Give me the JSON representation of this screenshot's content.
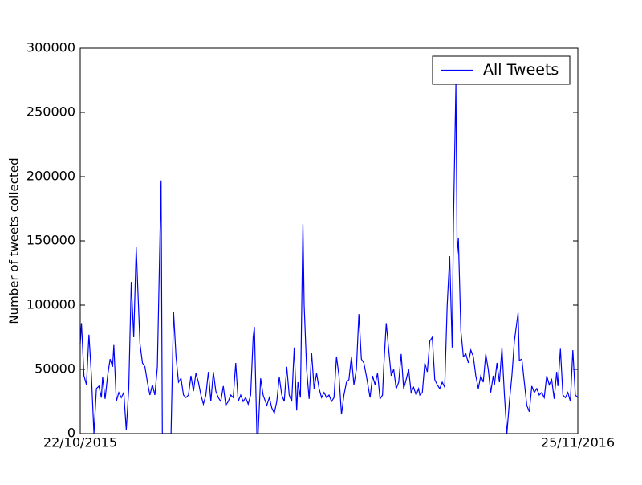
{
  "chart_data": {
    "type": "line",
    "y_label": "Number of tweets collected",
    "x": [
      0,
      1,
      3,
      5,
      7,
      9,
      11,
      13,
      15,
      17,
      18,
      20,
      22,
      24,
      26,
      27,
      29,
      31,
      33,
      35,
      37,
      39,
      41,
      43,
      45,
      46,
      48,
      50,
      52,
      54,
      56,
      58,
      60,
      62,
      65,
      66,
      73,
      75,
      77,
      79,
      81,
      83,
      85,
      87,
      89,
      91,
      93,
      95,
      97,
      99,
      101,
      103,
      105,
      107,
      109,
      111,
      113,
      115,
      117,
      119,
      121,
      123,
      125,
      127,
      129,
      131,
      133,
      135,
      137,
      139,
      140,
      142,
      143,
      145,
      147,
      150,
      152,
      154,
      156,
      158,
      160,
      162,
      164,
      166,
      168,
      170,
      172,
      174,
      175,
      177,
      179,
      180,
      182,
      184,
      186,
      188,
      190,
      192,
      194,
      196,
      198,
      200,
      202,
      204,
      206,
      208,
      210,
      212,
      214,
      216,
      218,
      220,
      222,
      224,
      226,
      228,
      230,
      233,
      235,
      237,
      239,
      241,
      243,
      244,
      246,
      248,
      250,
      252,
      254,
      256,
      258,
      260,
      262,
      264,
      266,
      268,
      270,
      272,
      273,
      275,
      277,
      279,
      281,
      283,
      285,
      287,
      289,
      291,
      293,
      295,
      297,
      299,
      300,
      302,
      303,
      304,
      306,
      308,
      310,
      312,
      314,
      316,
      318,
      320,
      322,
      324,
      326,
      328,
      330,
      332,
      333,
      335,
      337,
      339,
      341,
      343,
      345,
      347,
      349,
      352,
      353,
      355,
      357,
      359,
      361,
      363,
      365,
      367,
      369,
      371,
      373,
      375,
      377,
      379,
      381,
      383,
      384,
      386,
      388,
      390,
      392,
      394,
      396,
      398,
      400
    ],
    "series": [
      {
        "name": "All Tweets",
        "color": "#0000ff",
        "values": [
          70000,
          86000,
          45000,
          38000,
          77000,
          45000,
          0,
          35000,
          37000,
          28000,
          44000,
          27000,
          45000,
          58000,
          52000,
          69000,
          25000,
          32000,
          28000,
          32000,
          3000,
          35000,
          118000,
          75000,
          145000,
          120000,
          70000,
          55000,
          52000,
          40000,
          30000,
          38000,
          30000,
          52000,
          197000,
          0,
          0,
          95000,
          60000,
          40000,
          43000,
          30000,
          28000,
          30000,
          45000,
          33000,
          47000,
          40000,
          30000,
          23000,
          30000,
          48000,
          25000,
          48000,
          33000,
          28000,
          25000,
          37000,
          22000,
          25000,
          30000,
          28000,
          55000,
          25000,
          30000,
          25000,
          28000,
          23000,
          30000,
          75000,
          83000,
          0,
          0,
          43000,
          30000,
          22000,
          28000,
          20000,
          16000,
          25000,
          44000,
          30000,
          25000,
          52000,
          30000,
          25000,
          67000,
          18000,
          40000,
          28000,
          163000,
          100000,
          50000,
          27000,
          63000,
          35000,
          47000,
          35000,
          28000,
          32000,
          28000,
          30000,
          25000,
          28000,
          60000,
          45000,
          15000,
          30000,
          40000,
          42000,
          60000,
          38000,
          50000,
          93000,
          58000,
          55000,
          45000,
          28000,
          45000,
          38000,
          47000,
          27000,
          30000,
          52000,
          86000,
          65000,
          45000,
          50000,
          35000,
          40000,
          62000,
          35000,
          42000,
          50000,
          32000,
          36000,
          30000,
          35000,
          30000,
          32000,
          55000,
          48000,
          72000,
          75000,
          42000,
          38000,
          35000,
          40000,
          36000,
          100000,
          138000,
          67000,
          162000,
          272000,
          140000,
          152000,
          80000,
          60000,
          62000,
          55000,
          65000,
          60000,
          45000,
          35000,
          45000,
          40000,
          62000,
          50000,
          32000,
          45000,
          38000,
          55000,
          40000,
          67000,
          30000,
          0,
          25000,
          45000,
          72000,
          94000,
          57000,
          58000,
          40000,
          22000,
          17000,
          37000,
          32000,
          35000,
          30000,
          32000,
          28000,
          45000,
          38000,
          42000,
          27000,
          48000,
          37000,
          66000,
          30000,
          28000,
          32000,
          25000,
          65000,
          30000,
          28000
        ]
      }
    ],
    "xlim": [
      0,
      400
    ],
    "xticks": [
      {
        "value": 0,
        "label": "22/10/2015"
      },
      {
        "value": 400,
        "label": "25/11/2016"
      }
    ],
    "ylim": [
      0,
      300000
    ],
    "yticks": [
      0,
      50000,
      100000,
      150000,
      200000,
      250000,
      300000
    ],
    "legend": "upper right"
  }
}
